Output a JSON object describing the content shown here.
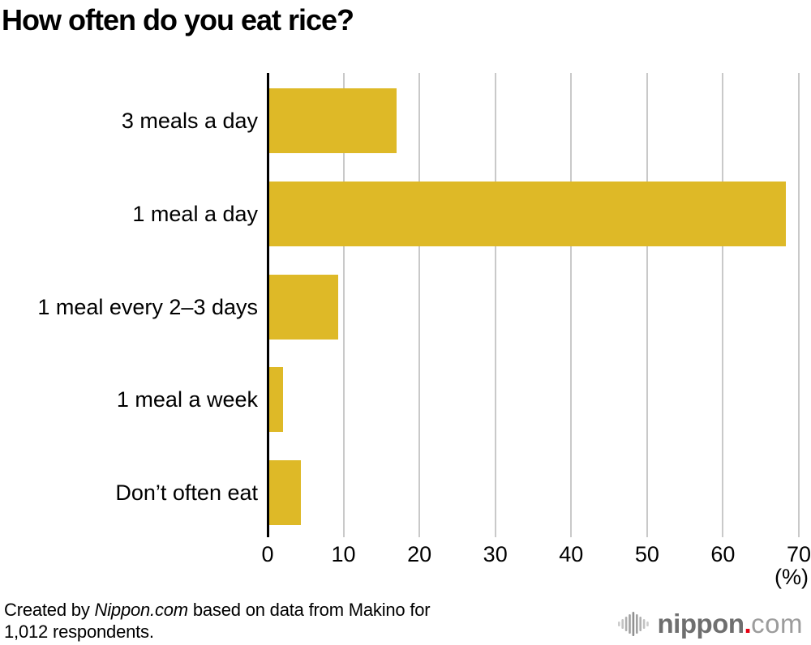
{
  "chart_data": {
    "type": "bar",
    "orientation": "horizontal",
    "title": "How often do you eat rice?",
    "categories": [
      "3 meals a day",
      "1 meal a day",
      "1 meal every 2–3 days",
      "1 meal a week",
      "Don’t often eat"
    ],
    "values": [
      16.8,
      68.1,
      9.1,
      1.8,
      4.2
    ],
    "xlabel": "(%)",
    "xlim": [
      0,
      70
    ],
    "xticks": [
      0,
      10,
      20,
      30,
      40,
      50,
      60,
      70
    ],
    "grid": true,
    "legend": false,
    "bar_color": "#DEB927",
    "gridline_color": "#C9C9C9",
    "axis_color": "#000000"
  },
  "footer": {
    "credit_prefix": "Created by ",
    "credit_brand": "Nippon.com",
    "credit_line1_rest": " based on data from Makino for",
    "credit_line2": "1,012 respondents."
  },
  "logo": {
    "icon": "waveform-icon",
    "name": "nippon",
    "dot": ".",
    "tld": "com",
    "name_color": "#6F6F6F",
    "dot_color": "#E60012",
    "tld_color": "#9C9C9C"
  }
}
